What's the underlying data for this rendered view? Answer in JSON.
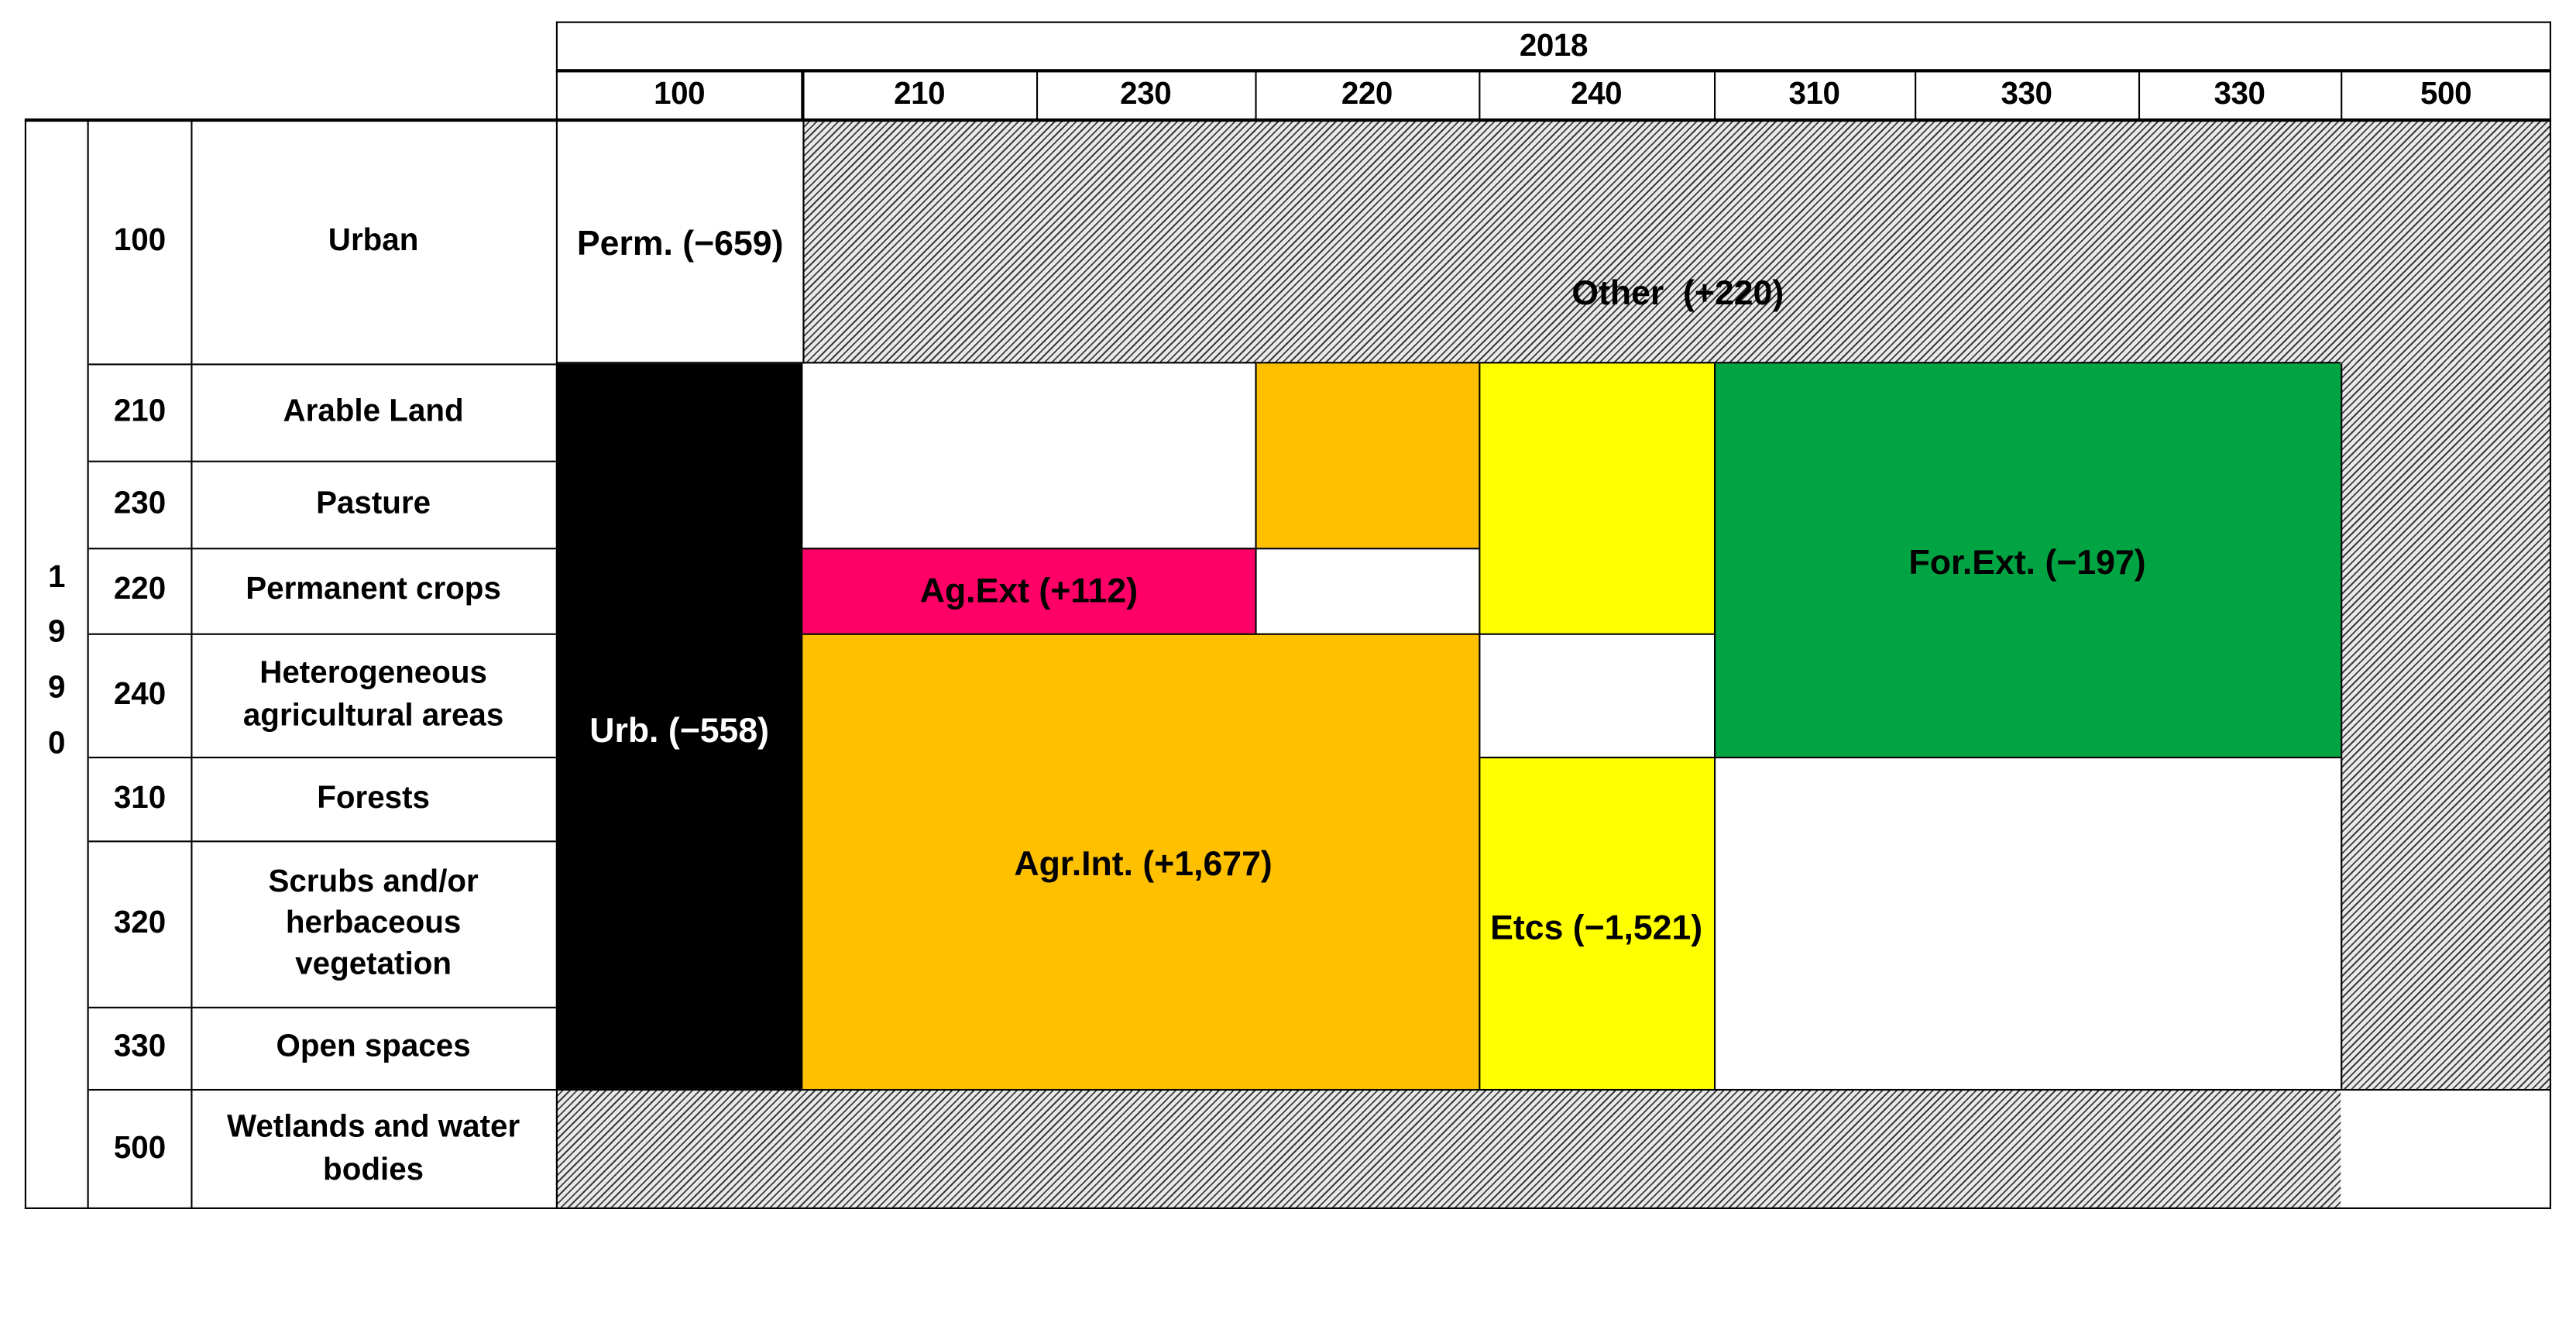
{
  "header": {
    "year_2018": "2018",
    "columns": [
      "100",
      "210",
      "230",
      "220",
      "240",
      "310",
      "330",
      "330",
      "500"
    ]
  },
  "side": {
    "year_1990_digits": [
      "1",
      "9",
      "9",
      "0"
    ]
  },
  "rows": [
    {
      "code": "100",
      "name": "Urban"
    },
    {
      "code": "210",
      "name": "Arable Land"
    },
    {
      "code": "230",
      "name": "Pasture"
    },
    {
      "code": "220",
      "name": "Permanent crops"
    },
    {
      "code": "240",
      "name": "Heterogeneous agricultural areas"
    },
    {
      "code": "310",
      "name": "Forests"
    },
    {
      "code": "320",
      "name": "Scrubs and/or herbaceous vegetation"
    },
    {
      "code": "330",
      "name": "Open spaces"
    },
    {
      "code": "500",
      "name": "Wetlands and water bodies"
    }
  ],
  "regions": {
    "perm": "Perm. (−659)",
    "other": "Other  (+220)",
    "urb": "Urb. (−558)",
    "ag_ext": "Ag.Ext (+112)",
    "agr_int": "Agr.Int. (+1,677)",
    "etcs": "Etcs (−1,521)",
    "for_ext": "For.Ext. (−197)"
  },
  "colors": {
    "urb": "#000000",
    "ag_ext": "#ff0066",
    "agr_int": "#ffc000",
    "etcs": "#ffff00",
    "for_ext": "#00a443",
    "other": "hatched-gray"
  }
}
